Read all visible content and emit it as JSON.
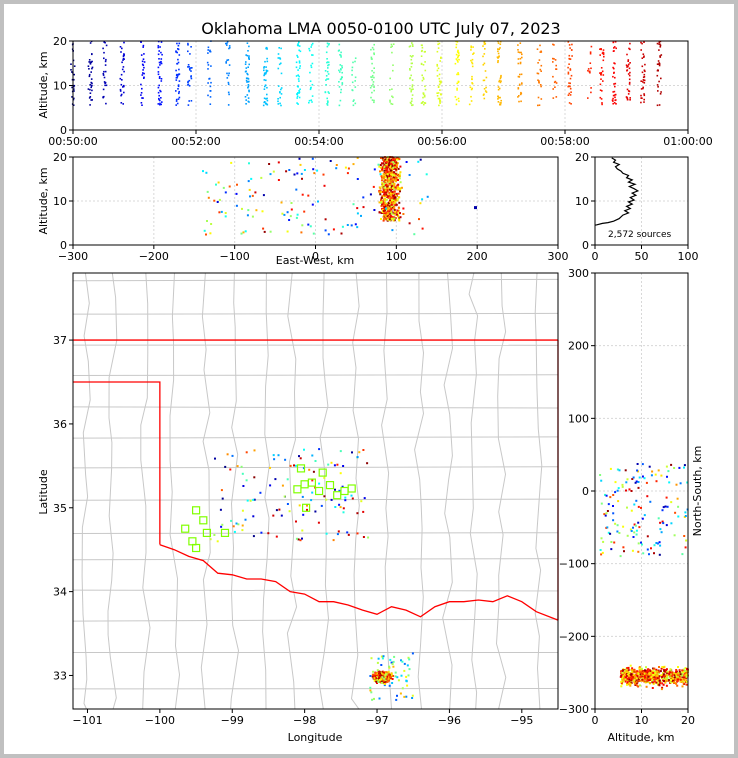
{
  "title": "Oklahoma LMA 0050-0100 UTC July 07, 2023",
  "chart_data": [
    {
      "panel": "altitude-time",
      "type": "scatter",
      "xlabel": "",
      "ylabel": "Altitude, km",
      "xlim": [
        "00:50:00",
        "01:00:00"
      ],
      "ylim": [
        0,
        20
      ],
      "xticks": [
        "00:50:00",
        "00:52:00",
        "00:54:00",
        "00:56:00",
        "00:58:00",
        "01:00:00"
      ],
      "yticks": [
        "0",
        "10",
        "20"
      ],
      "color_scale": "time (blue = early, red = late)",
      "grid": true,
      "points_summary": "vertical columns of VHF sources every ~15-20 s between 00:50 and 01:00, mostly 5-20 km altitude"
    },
    {
      "panel": "altitude-eastwest",
      "type": "scatter",
      "xlabel": "East-West, km",
      "ylabel": "Altitude, km",
      "xlim": [
        -300,
        300
      ],
      "ylim": [
        0,
        20
      ],
      "xticks": [
        "−300",
        "−200",
        "−100",
        "0",
        "100",
        "200",
        "300"
      ],
      "yticks": [
        "0",
        "10",
        "20"
      ],
      "grid": true,
      "points_summary": "dense cluster near x=80-130 km, 5-20 km altitude; scattered sources from -140 to 140 km"
    },
    {
      "panel": "altitude-histogram",
      "type": "line",
      "xlim": [
        0,
        100
      ],
      "ylim": [
        0,
        20
      ],
      "xticks": [
        "0",
        "50",
        "100"
      ],
      "yticks": [
        "0",
        "10",
        "20"
      ],
      "annotation": "2,572 sources",
      "profile": [
        [
          0,
          4.5
        ],
        [
          2,
          4.6
        ],
        [
          8,
          4.9
        ],
        [
          14,
          5.1
        ],
        [
          20,
          5.4
        ],
        [
          26,
          6
        ],
        [
          30,
          6.8
        ],
        [
          36,
          7.3
        ],
        [
          32,
          7.8
        ],
        [
          38,
          8.3
        ],
        [
          34,
          8.8
        ],
        [
          40,
          9.3
        ],
        [
          36,
          9.8
        ],
        [
          42,
          10.2
        ],
        [
          38,
          10.8
        ],
        [
          44,
          11.3
        ],
        [
          40,
          11.8
        ],
        [
          46,
          12.3
        ],
        [
          42,
          12.8
        ],
        [
          37,
          13.3
        ],
        [
          43,
          13.8
        ],
        [
          36,
          14.3
        ],
        [
          40,
          14.8
        ],
        [
          34,
          15.3
        ],
        [
          36,
          15.8
        ],
        [
          30,
          16.3
        ],
        [
          28,
          16.8
        ],
        [
          24,
          17.3
        ],
        [
          22,
          17.8
        ],
        [
          26,
          18.3
        ],
        [
          20,
          18.8
        ],
        [
          22,
          19.3
        ],
        [
          18,
          19.8
        ]
      ]
    },
    {
      "panel": "plan-view-map",
      "type": "scatter",
      "xlabel": "Longitude",
      "ylabel": "Latitude",
      "xlim": [
        -101.2,
        -94.5
      ],
      "ylim": [
        32.6,
        37.8
      ],
      "xticks": [
        "−101",
        "−100",
        "−99",
        "−98",
        "−97",
        "−96",
        "−95"
      ],
      "yticks": [
        "33",
        "34",
        "35",
        "36",
        "37"
      ],
      "state_border_color": "#ff0000",
      "county_line_color": "#c8c8c8",
      "station_marker_color": "#80ff00",
      "stations": [
        [
          -99.5,
          34.97
        ],
        [
          -99.4,
          34.85
        ],
        [
          -99.35,
          34.7
        ],
        [
          -99.55,
          34.6
        ],
        [
          -99.5,
          34.52
        ],
        [
          -99.65,
          34.75
        ],
        [
          -99.1,
          34.7
        ],
        [
          -98.05,
          35.47
        ],
        [
          -98.0,
          35.28
        ],
        [
          -98.1,
          35.22
        ],
        [
          -97.9,
          35.3
        ],
        [
          -97.8,
          35.2
        ],
        [
          -97.75,
          35.42
        ],
        [
          -97.65,
          35.27
        ],
        [
          -97.55,
          35.15
        ],
        [
          -97.45,
          35.2
        ],
        [
          -97.35,
          35.23
        ],
        [
          -97.98,
          35.0
        ]
      ],
      "points_summary": "dense cluster near -97.0 lon, 33.0 lat; scattered sources over central Oklahoma"
    },
    {
      "panel": "altitude-northsouth",
      "type": "scatter",
      "xlabel": "Altitude, km",
      "ylabel": "North-South, km",
      "xlim": [
        0,
        20
      ],
      "ylim": [
        -300,
        300
      ],
      "xticks": [
        "0",
        "10",
        "20"
      ],
      "yticks": [
        "−300",
        "−200",
        "−100",
        "0",
        "100",
        "200",
        "300"
      ],
      "grid": true,
      "points_summary": "dense cluster at y=-230 to -280 km, altitude 5-20 km; scattered sources near y=0"
    }
  ]
}
